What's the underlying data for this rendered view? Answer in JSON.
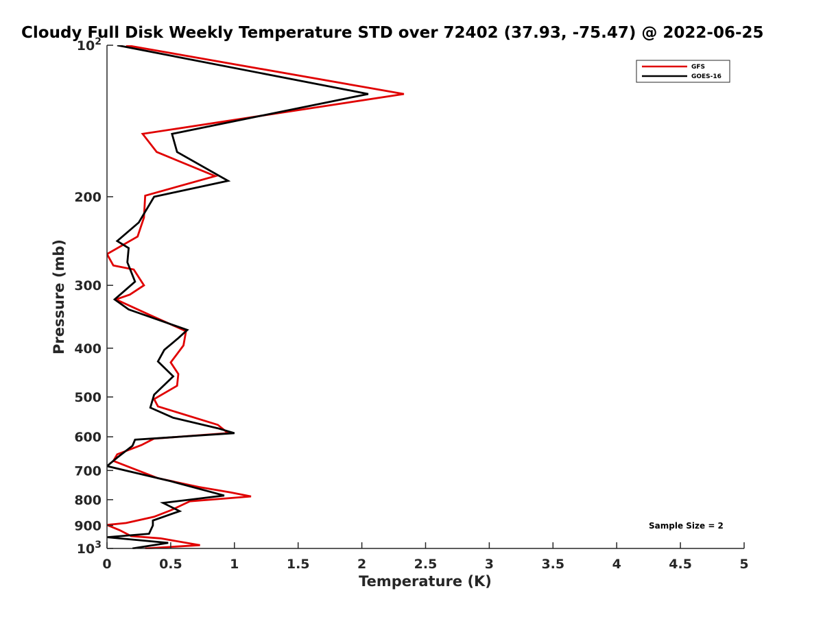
{
  "chart_data": {
    "type": "line",
    "title": "Cloudy Full Disk Weekly Temperature STD over 72402 (37.93, -75.47) @ 2022-06-25",
    "xlabel": "Temperature (K)",
    "ylabel": "Pressure (mb)",
    "xlim": [
      0,
      5
    ],
    "ylim": [
      100,
      1000
    ],
    "y_scale": "log",
    "y_reversed": true,
    "x_ticks": [
      "0",
      "0.5",
      "1",
      "1.5",
      "2",
      "2.5",
      "3",
      "3.5",
      "4",
      "4.5",
      "5"
    ],
    "y_ticks": [
      {
        "value": 100,
        "base": "10",
        "exp": "2"
      },
      {
        "value": 200,
        "label": "200"
      },
      {
        "value": 300,
        "label": "300"
      },
      {
        "value": 400,
        "label": "400"
      },
      {
        "value": 500,
        "label": "500"
      },
      {
        "value": 600,
        "label": "600"
      },
      {
        "value": 700,
        "label": "700"
      },
      {
        "value": 800,
        "label": "800"
      },
      {
        "value": 900,
        "label": "900"
      },
      {
        "value": 1000,
        "base": "10",
        "exp": "3"
      }
    ],
    "legend_position": "top-right",
    "annotation": "Sample Size = 2",
    "series": [
      {
        "name": "GFS",
        "color": "#e00000",
        "points": [
          [
            0.15,
            100
          ],
          [
            2.33,
            125
          ],
          [
            0.28,
            150
          ],
          [
            0.39,
            163
          ],
          [
            0.85,
            182
          ],
          [
            0.3,
            199
          ],
          [
            0.29,
            220
          ],
          [
            0.24,
            240
          ],
          [
            0.0,
            260
          ],
          [
            0.05,
            274
          ],
          [
            0.21,
            279
          ],
          [
            0.29,
            300
          ],
          [
            0.18,
            313
          ],
          [
            0.07,
            320
          ],
          [
            0.34,
            344
          ],
          [
            0.62,
            370
          ],
          [
            0.6,
            395
          ],
          [
            0.5,
            427
          ],
          [
            0.56,
            450
          ],
          [
            0.55,
            475
          ],
          [
            0.37,
            505
          ],
          [
            0.4,
            522
          ],
          [
            0.87,
            568
          ],
          [
            0.95,
            590
          ],
          [
            0.37,
            605
          ],
          [
            0.27,
            623
          ],
          [
            0.08,
            650
          ],
          [
            0.05,
            670
          ],
          [
            0.18,
            690
          ],
          [
            0.4,
            725
          ],
          [
            0.72,
            755
          ],
          [
            0.97,
            774
          ],
          [
            1.13,
            788
          ],
          [
            0.65,
            806
          ],
          [
            0.5,
            840
          ],
          [
            0.37,
            865
          ],
          [
            0.15,
            890
          ],
          [
            0.0,
            898
          ],
          [
            0.1,
            920
          ],
          [
            0.19,
            945
          ],
          [
            0.42,
            955
          ],
          [
            0.73,
            985
          ],
          [
            0.3,
            1000
          ]
        ]
      },
      {
        "name": "GOES-16",
        "color": "#000000",
        "points": [
          [
            0.08,
            100
          ],
          [
            2.05,
            125
          ],
          [
            0.51,
            150
          ],
          [
            0.55,
            163
          ],
          [
            0.95,
            186
          ],
          [
            0.37,
            200
          ],
          [
            0.25,
            225
          ],
          [
            0.08,
            245
          ],
          [
            0.17,
            253
          ],
          [
            0.16,
            270
          ],
          [
            0.22,
            295
          ],
          [
            0.06,
            320
          ],
          [
            0.17,
            335
          ],
          [
            0.63,
            368
          ],
          [
            0.56,
            382
          ],
          [
            0.45,
            403
          ],
          [
            0.4,
            425
          ],
          [
            0.52,
            455
          ],
          [
            0.37,
            495
          ],
          [
            0.34,
            525
          ],
          [
            0.52,
            550
          ],
          [
            0.87,
            577
          ],
          [
            1.0,
            590
          ],
          [
            0.22,
            608
          ],
          [
            0.2,
            625
          ],
          [
            0.08,
            660
          ],
          [
            0.0,
            686
          ],
          [
            0.5,
            735
          ],
          [
            0.92,
            785
          ],
          [
            0.44,
            812
          ],
          [
            0.57,
            843
          ],
          [
            0.36,
            880
          ],
          [
            0.36,
            900
          ],
          [
            0.33,
            935
          ],
          [
            0.0,
            950
          ],
          [
            0.48,
            975
          ],
          [
            0.2,
            1000
          ]
        ]
      }
    ]
  }
}
